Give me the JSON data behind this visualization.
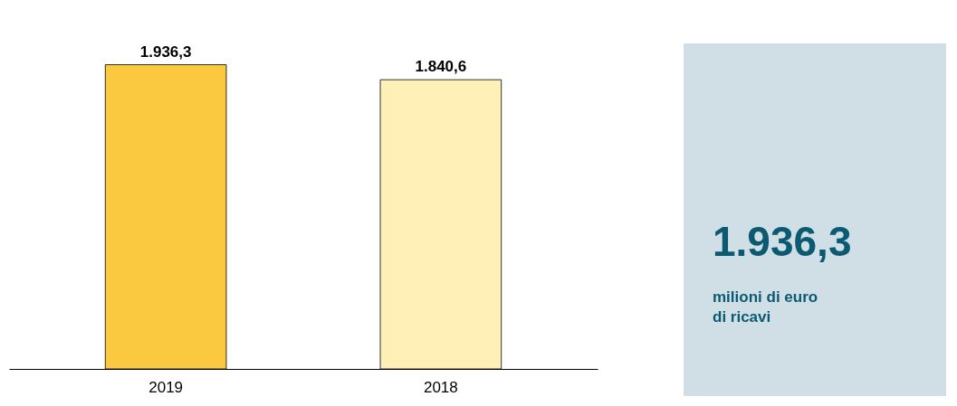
{
  "chart_data": [
    {
      "type": "bar",
      "categories": [
        "2019",
        "2018"
      ],
      "values": [
        1936.3,
        1840.6
      ],
      "colors": [
        "#fbc940",
        "#fff0b8"
      ],
      "value_labels": [
        "1.936,3",
        "1.840,6"
      ],
      "legend": false,
      "grid": false
    },
    {
      "type": "other",
      "annotations": [
        "1.936,3",
        "milioni di euro",
        "di ricavi"
      ]
    }
  ]
}
